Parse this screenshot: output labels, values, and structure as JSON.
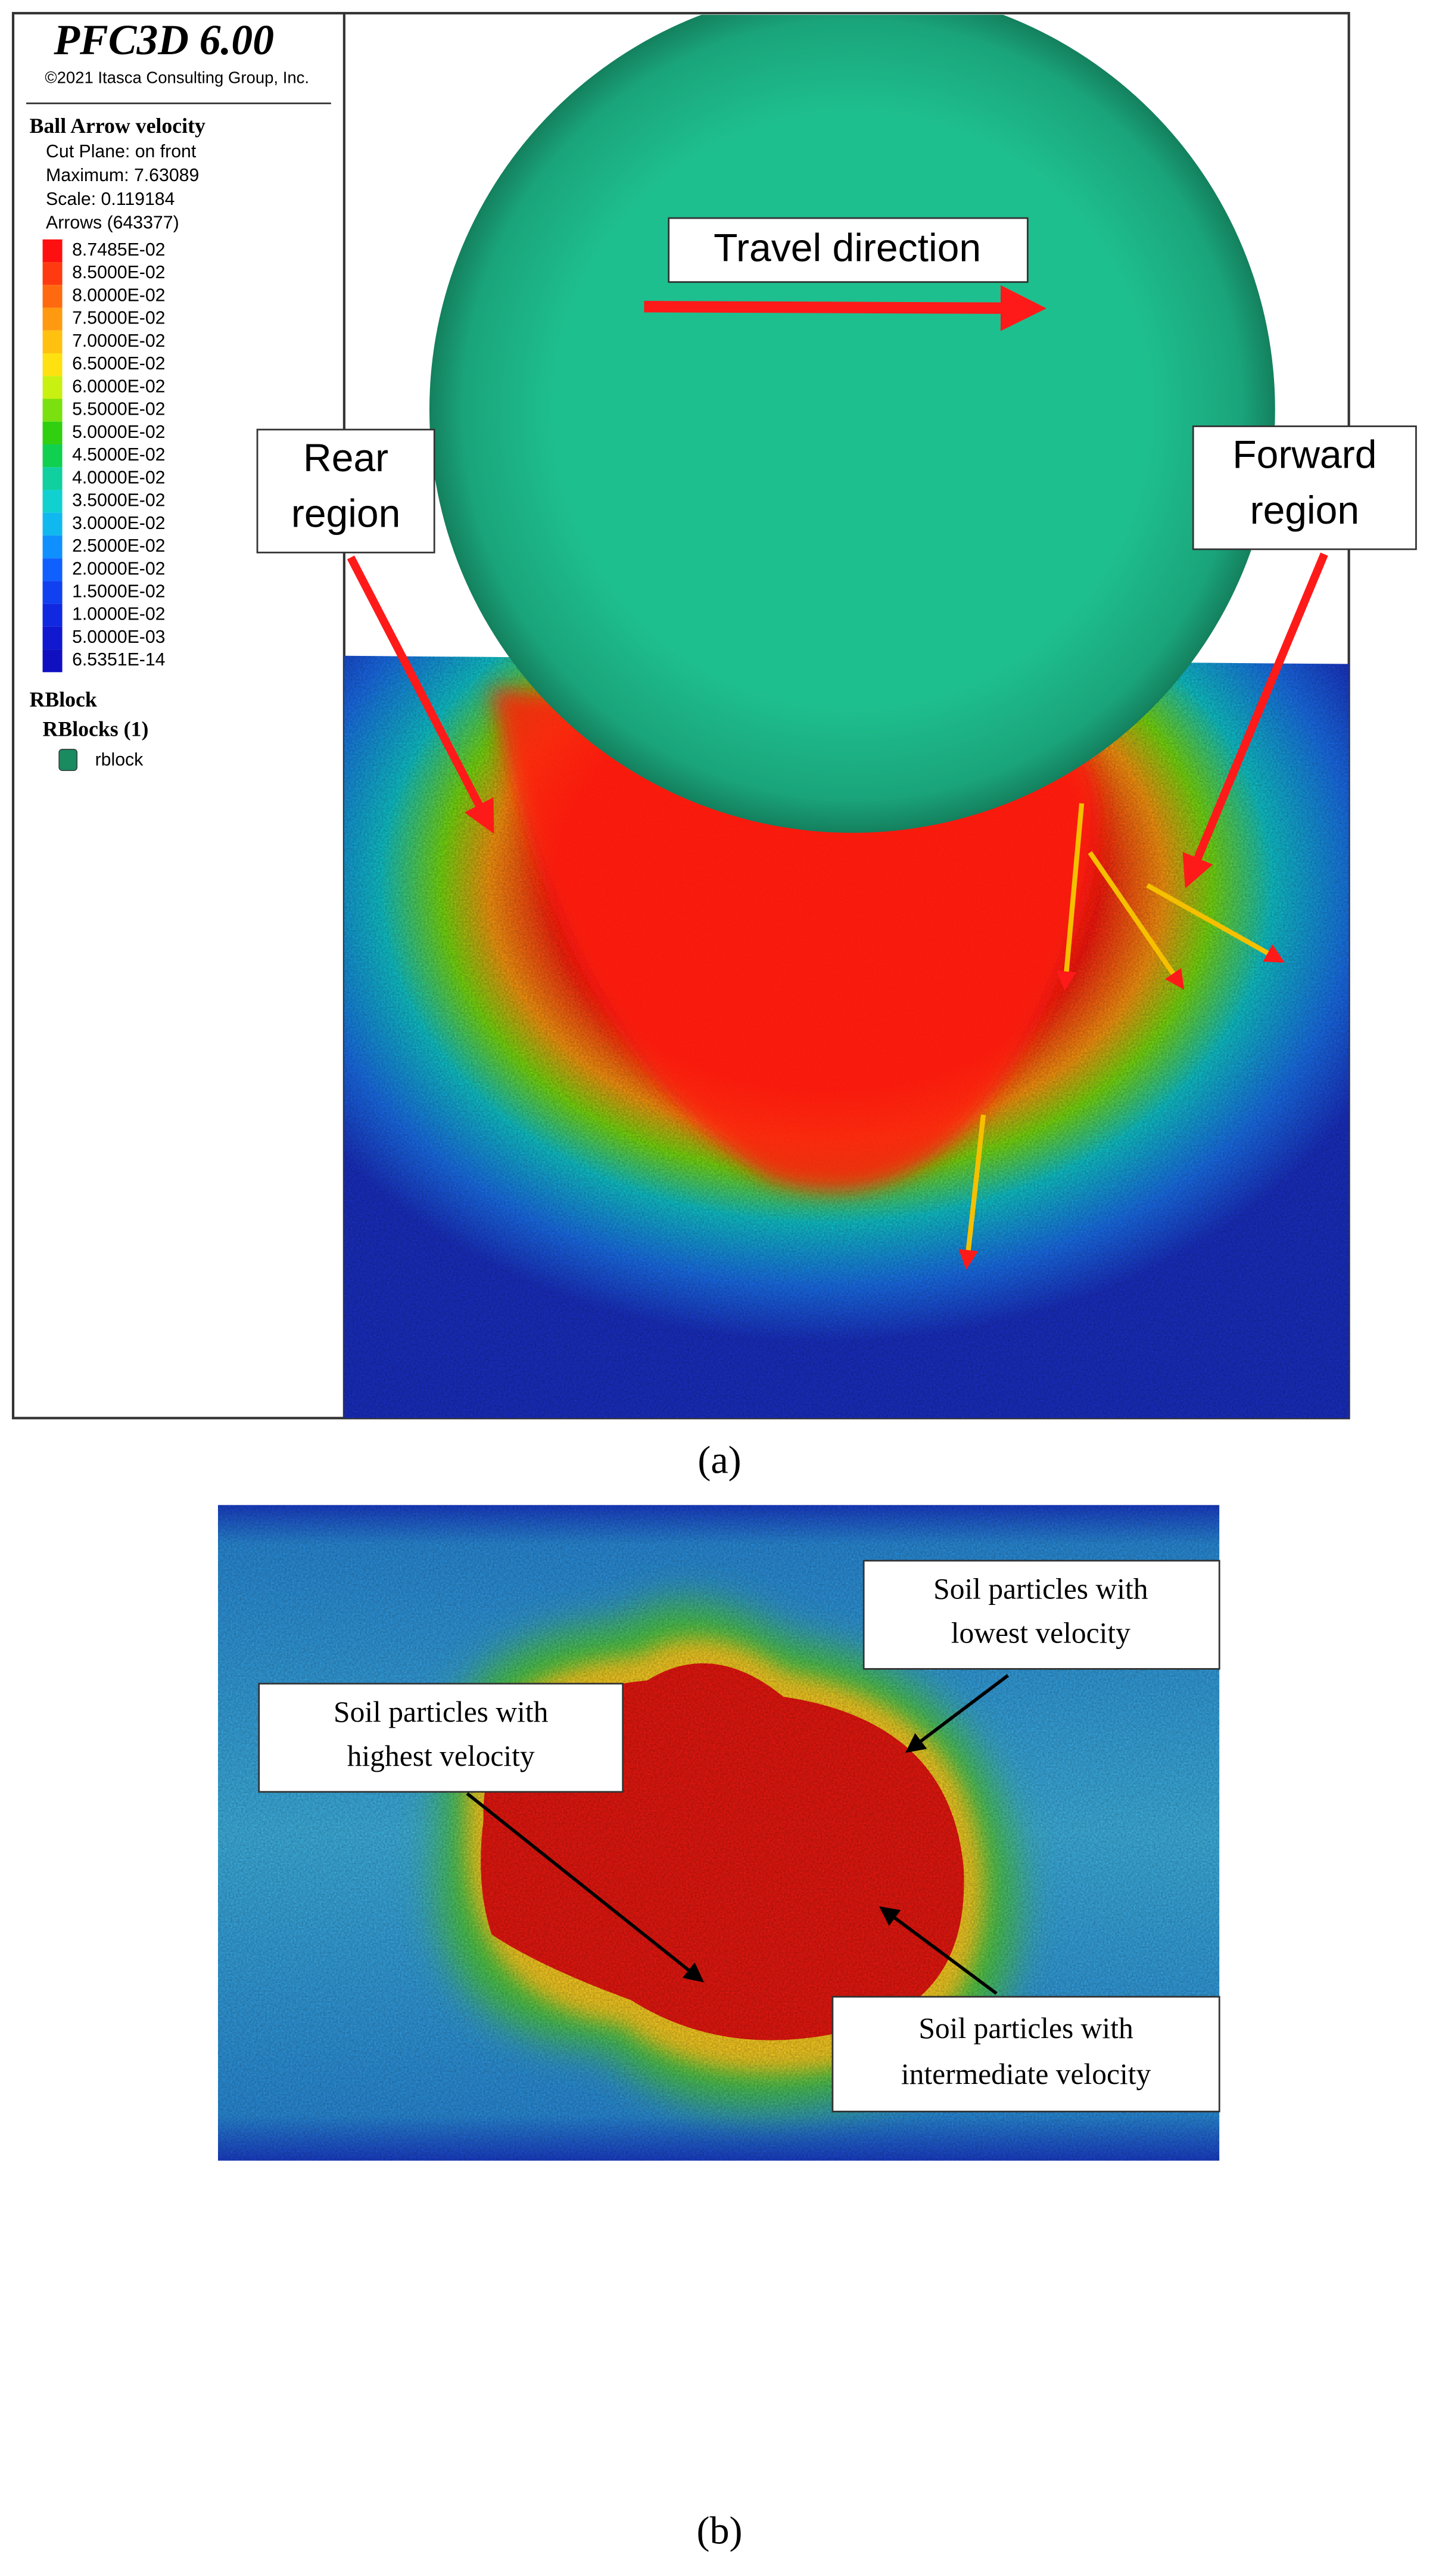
{
  "panel_a": {
    "program": "PFC3D 6.00",
    "copyright": "©2021 Itasca Consulting Group, Inc.",
    "heading": "Ball Arrow velocity",
    "info": [
      "Cut Plane: on front",
      "Maximum: 7.63089",
      "Scale: 0.119184",
      "Arrows (643377)"
    ],
    "scale": [
      {
        "label": "8.7485E-02",
        "color": "#ff1010"
      },
      {
        "label": "8.5000E-02",
        "color": "#ff3a10"
      },
      {
        "label": "8.0000E-02",
        "color": "#ff6a10"
      },
      {
        "label": "7.5000E-02",
        "color": "#ff9a10"
      },
      {
        "label": "7.0000E-02",
        "color": "#ffc010"
      },
      {
        "label": "6.5000E-02",
        "color": "#ffe010"
      },
      {
        "label": "6.0000E-02",
        "color": "#c8f010"
      },
      {
        "label": "5.5000E-02",
        "color": "#7ae010"
      },
      {
        "label": "5.0000E-02",
        "color": "#30d010"
      },
      {
        "label": "4.5000E-02",
        "color": "#10d050"
      },
      {
        "label": "4.0000E-02",
        "color": "#10d0a0"
      },
      {
        "label": "3.5000E-02",
        "color": "#10d0d0"
      },
      {
        "label": "3.0000E-02",
        "color": "#10b8f0"
      },
      {
        "label": "2.5000E-02",
        "color": "#1090ff"
      },
      {
        "label": "2.0000E-02",
        "color": "#1060ff"
      },
      {
        "label": "1.5000E-02",
        "color": "#1040f0"
      },
      {
        "label": "1.0000E-02",
        "color": "#1028e0"
      },
      {
        "label": "5.0000E-03",
        "color": "#1018d0"
      },
      {
        "label": "6.5351E-14",
        "color": "#1010c0"
      }
    ],
    "rblock_heading": "RBlock",
    "rblocks_label": "RBlocks (1)",
    "rblock_item": "rblock",
    "rblock_color": "#1a8a60",
    "travel_direction": "Travel direction",
    "rear_region": [
      "Rear",
      "region"
    ],
    "forward_region": [
      "Forward",
      "region"
    ],
    "caption": "(a)"
  },
  "panel_b": {
    "lowest": [
      "Soil particles with",
      "lowest velocity"
    ],
    "highest": [
      "Soil particles with",
      "highest velocity"
    ],
    "intermediate": [
      "Soil particles with",
      "intermediate velocity"
    ],
    "caption": "(b)"
  }
}
